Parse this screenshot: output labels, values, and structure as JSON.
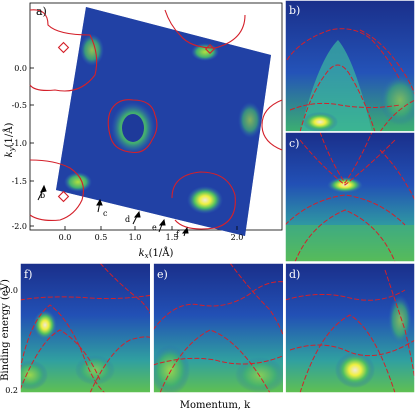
{
  "panels": {
    "a": "a)",
    "b": "b)",
    "c": "c)",
    "d": "d)",
    "e": "e)",
    "f": "f)"
  },
  "main_plot": {
    "ylabel_k": "k",
    "ylabel_sub": "y",
    "ylabel_unit": "(1/Å)",
    "xlabel_k": "k",
    "xlabel_sub": "x",
    "xlabel_unit": "(1/Å)",
    "y_ticks": [
      "0.0",
      "-0.5",
      "-1.0",
      "-1.5",
      "-2.0"
    ],
    "x_ticks": [
      "0.0",
      "0.5",
      "1.0",
      "1.5",
      "2.0"
    ],
    "cut_labels": [
      "b",
      "c",
      "d",
      "e",
      "f"
    ]
  },
  "bottom_axes": {
    "ylabel": "Binding energy (eV)",
    "y_ticks": [
      "0.0",
      "0.2"
    ],
    "xlabel": "Momentum, k"
  },
  "colors": {
    "background": "#1e3a9a",
    "contour": "#d4202a",
    "glow": "#ffff40"
  }
}
